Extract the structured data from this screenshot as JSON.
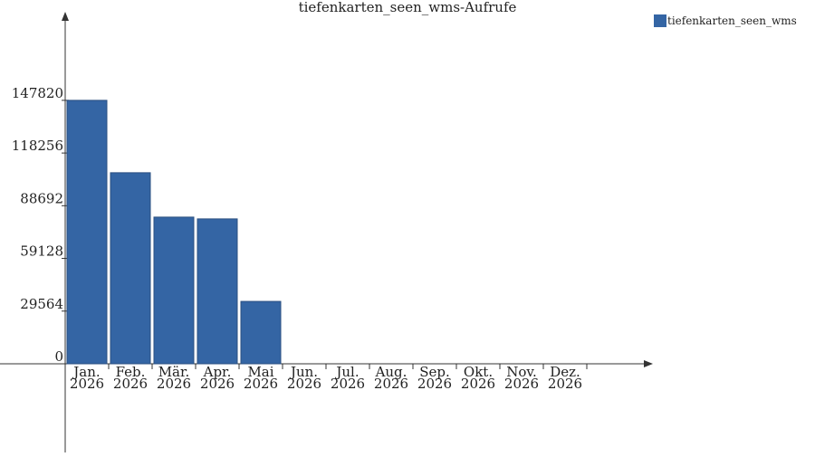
{
  "chart_data": {
    "type": "bar",
    "title": "tiefenkarten_seen_wms-Aufrufe",
    "categories": [
      "Jan. 2026",
      "Feb. 2026",
      "Mär. 2026",
      "Apr. 2026",
      "Mai 2026",
      "Jun. 2026",
      "Jul. 2026",
      "Aug. 2026",
      "Sep. 2026",
      "Okt. 2026",
      "Nov. 2026",
      "Dez. 2026"
    ],
    "series": [
      {
        "name": "tiefenkarten_seen_wms",
        "color": "#3465a4",
        "values": [
          147820,
          107200,
          82300,
          81300,
          35000,
          null,
          null,
          null,
          null,
          null,
          null,
          null
        ]
      }
    ],
    "ylim": [
      0,
      196500
    ],
    "yticks": [
      0,
      29564,
      59128,
      88692,
      118256,
      147820
    ]
  }
}
